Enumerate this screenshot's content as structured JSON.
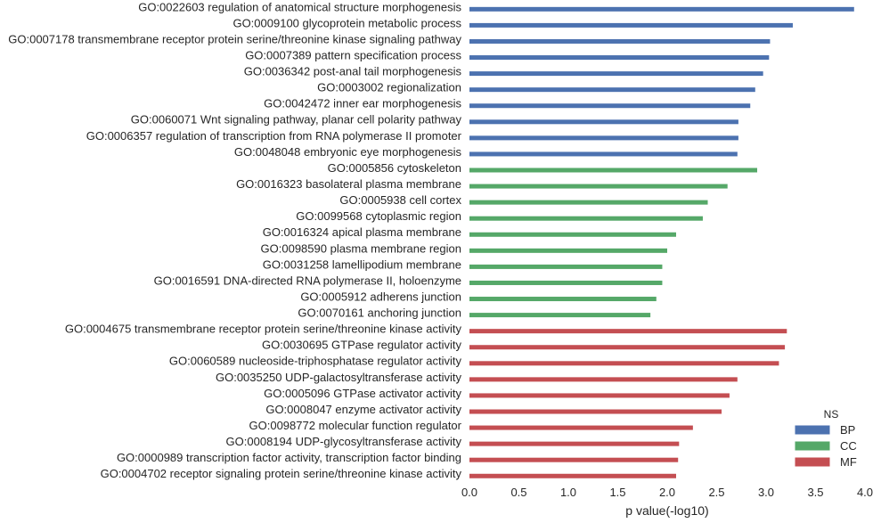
{
  "chart_data": {
    "type": "bar",
    "orientation": "horizontal",
    "xlabel": "p value(-log10)",
    "xlim": [
      0,
      4
    ],
    "xticks": [
      "0.0",
      "0.5",
      "1.0",
      "1.5",
      "2.0",
      "2.5",
      "3.0",
      "3.5",
      "4.0"
    ],
    "grid": false,
    "legend": {
      "title": "NS",
      "placement": "bottom-right",
      "entries": [
        {
          "name": "BP",
          "color": "#4c72b0"
        },
        {
          "name": "CC",
          "color": "#55a868"
        },
        {
          "name": "MF",
          "color": "#c44e52"
        }
      ]
    },
    "categories": [
      {
        "label": "GO:0022603 regulation of anatomical structure morphogenesis",
        "value": 3.89,
        "ns": "BP"
      },
      {
        "label": "GO:0009100 glycoprotein metabolic process",
        "value": 3.27,
        "ns": "BP"
      },
      {
        "label": "GO:0007178 transmembrane receptor protein serine/threonine kinase signaling pathway",
        "value": 3.04,
        "ns": "BP"
      },
      {
        "label": "GO:0007389 pattern specification process",
        "value": 3.03,
        "ns": "BP"
      },
      {
        "label": "GO:0036342 post-anal tail morphogenesis",
        "value": 2.97,
        "ns": "BP"
      },
      {
        "label": "GO:0003002 regionalization",
        "value": 2.89,
        "ns": "BP"
      },
      {
        "label": "GO:0042472 inner ear morphogenesis",
        "value": 2.84,
        "ns": "BP"
      },
      {
        "label": "GO:0060071 Wnt signaling pathway, planar cell polarity pathway",
        "value": 2.72,
        "ns": "BP"
      },
      {
        "label": "GO:0006357 regulation of transcription from RNA polymerase II promoter",
        "value": 2.72,
        "ns": "BP"
      },
      {
        "label": "GO:0048048 embryonic eye morphogenesis",
        "value": 2.71,
        "ns": "BP"
      },
      {
        "label": "GO:0005856 cytoskeleton",
        "value": 2.91,
        "ns": "CC"
      },
      {
        "label": "GO:0016323 basolateral plasma membrane",
        "value": 2.61,
        "ns": "CC"
      },
      {
        "label": "GO:0005938 cell cortex",
        "value": 2.41,
        "ns": "CC"
      },
      {
        "label": "GO:0099568 cytoplasmic region",
        "value": 2.36,
        "ns": "CC"
      },
      {
        "label": "GO:0016324 apical plasma membrane",
        "value": 2.09,
        "ns": "CC"
      },
      {
        "label": "GO:0098590 plasma membrane region",
        "value": 2.0,
        "ns": "CC"
      },
      {
        "label": "GO:0031258 lamellipodium membrane",
        "value": 1.95,
        "ns": "CC"
      },
      {
        "label": "GO:0016591 DNA-directed RNA polymerase II, holoenzyme",
        "value": 1.95,
        "ns": "CC"
      },
      {
        "label": "GO:0005912 adherens junction",
        "value": 1.89,
        "ns": "CC"
      },
      {
        "label": "GO:0070161 anchoring junction",
        "value": 1.83,
        "ns": "CC"
      },
      {
        "label": "GO:0004675 transmembrane receptor protein serine/threonine kinase activity",
        "value": 3.21,
        "ns": "MF"
      },
      {
        "label": "GO:0030695 GTPase regulator activity",
        "value": 3.19,
        "ns": "MF"
      },
      {
        "label": "GO:0060589 nucleoside-triphosphatase regulator activity",
        "value": 3.13,
        "ns": "MF"
      },
      {
        "label": "GO:0035250 UDP-galactosyltransferase activity",
        "value": 2.71,
        "ns": "MF"
      },
      {
        "label": "GO:0005096 GTPase activator activity",
        "value": 2.63,
        "ns": "MF"
      },
      {
        "label": "GO:0008047 enzyme activator activity",
        "value": 2.55,
        "ns": "MF"
      },
      {
        "label": "GO:0098772 molecular function regulator",
        "value": 2.26,
        "ns": "MF"
      },
      {
        "label": "GO:0008194 UDP-glycosyltransferase activity",
        "value": 2.12,
        "ns": "MF"
      },
      {
        "label": "GO:0000989 transcription factor activity, transcription factor binding",
        "value": 2.11,
        "ns": "MF"
      },
      {
        "label": "GO:0004702 receptor signaling protein serine/threonine kinase activity",
        "value": 2.09,
        "ns": "MF"
      }
    ]
  }
}
